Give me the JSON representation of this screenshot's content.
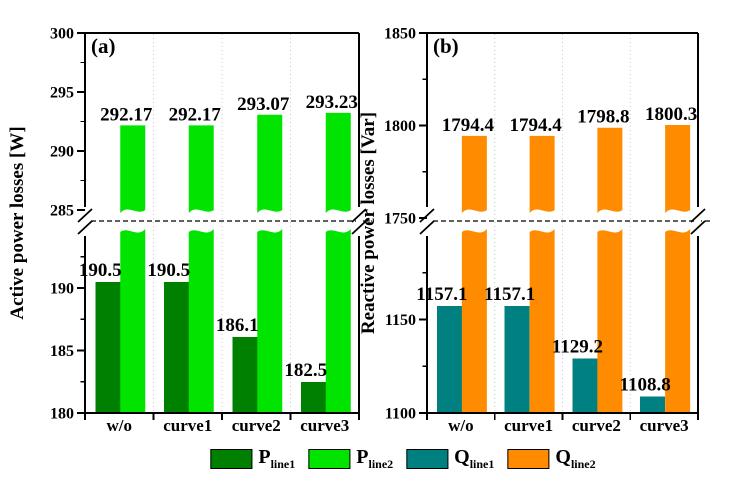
{
  "colors": {
    "p_line1": "#008000",
    "p_line2": "#00e400",
    "q_line1": "#008080",
    "q_line2": "#ff8c00",
    "grid": "#c9c9c9",
    "axis": "#000000"
  },
  "legend": {
    "items": [
      {
        "main": "P",
        "sub": "line1",
        "color_key": "p_line1"
      },
      {
        "main": "P",
        "sub": "line2",
        "color_key": "p_line2"
      },
      {
        "main": "Q",
        "sub": "line1",
        "color_key": "q_line1"
      },
      {
        "main": "Q",
        "sub": "line2",
        "color_key": "q_line2"
      }
    ]
  },
  "chart_data": [
    {
      "type": "bar",
      "panel_tag": "(a)",
      "ylabel": "Active power losses [W]",
      "categories": [
        "w/o",
        "curve1",
        "curve2",
        "curve3"
      ],
      "grid": "vertical-dotted",
      "axis_break": {
        "upper_axis": {
          "range": [
            284,
            300
          ],
          "major_ticks": [
            285,
            290,
            295,
            300
          ],
          "minor_ticks": [
            287.5,
            292.5,
            297.5
          ]
        },
        "lower_axis": {
          "range": [
            180,
            194.6
          ],
          "major_ticks": [
            180,
            185,
            190
          ],
          "minor_ticks": [
            182.5,
            187.5,
            192.5
          ]
        }
      },
      "series": [
        {
          "name": "P_line1",
          "segment": "lower",
          "color_key": "p_line1",
          "values": [
            190.5,
            190.5,
            186.1,
            182.5
          ],
          "value_labels": [
            "190.5",
            "190.5",
            "186.1",
            "182.5"
          ]
        },
        {
          "name": "P_line2",
          "segment": "upper",
          "color_key": "p_line2",
          "values": [
            292.17,
            292.17,
            293.07,
            293.23
          ],
          "value_labels": [
            "292.17",
            "292.17",
            "293.07",
            "293.23"
          ]
        }
      ]
    },
    {
      "type": "bar",
      "panel_tag": "(b)",
      "ylabel": "Reactive power losses [Var]",
      "categories": [
        "w/o",
        "curve1",
        "curve2",
        "curve3"
      ],
      "grid": "vertical-dotted",
      "axis_break": {
        "upper_axis": {
          "range": [
            1749,
            1850
          ],
          "major_ticks": [
            1750,
            1800,
            1850
          ],
          "minor_ticks": [
            1775,
            1825
          ]
        },
        "lower_axis": {
          "range": [
            1100,
            1197
          ],
          "major_ticks": [
            1100,
            1150
          ],
          "minor_ticks": [
            1125,
            1175
          ]
        }
      },
      "series": [
        {
          "name": "Q_line1",
          "segment": "lower",
          "color_key": "q_line1",
          "values": [
            1157.1,
            1157.1,
            1129.2,
            1108.8
          ],
          "value_labels": [
            "1157.1",
            "1157.1",
            "1129.2",
            "1108.8"
          ]
        },
        {
          "name": "Q_line2",
          "segment": "upper",
          "color_key": "q_line2",
          "values": [
            1794.4,
            1794.4,
            1798.8,
            1800.3
          ],
          "value_labels": [
            "1794.4",
            "1794.4",
            "1798.8",
            "1800.3"
          ]
        }
      ]
    }
  ]
}
